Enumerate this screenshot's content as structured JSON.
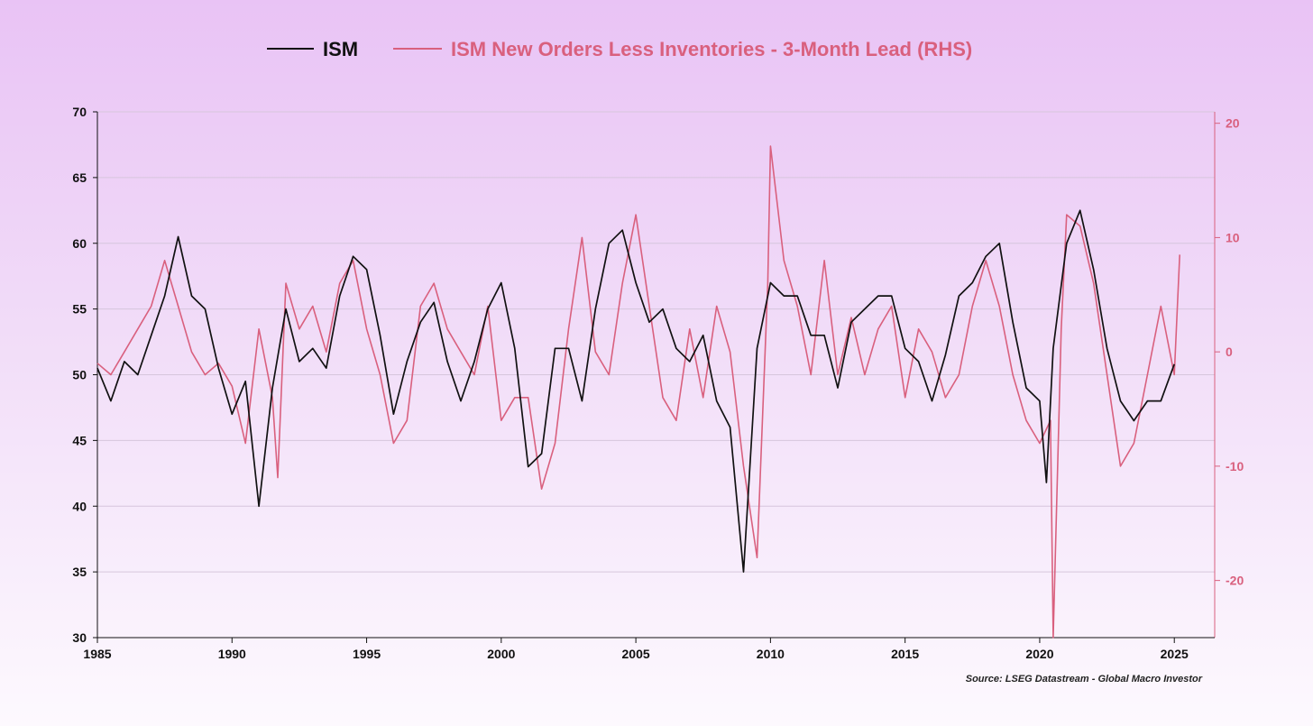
{
  "legend": {
    "ism_label": "ISM",
    "noi_label": "ISM New Orders Less Inventories - 3-Month Lead (RHS)"
  },
  "source": "Source: LSEG Datastream - Global Macro Investor",
  "colors": {
    "ism": "#111111",
    "noi": "#d9607e",
    "left_axis": "#111111",
    "right_axis": "#d9607e",
    "grid": "#d6c6dc"
  },
  "chart_data": {
    "type": "line",
    "xlim": [
      1985,
      2026.5
    ],
    "x_ticks": [
      1985,
      1990,
      1995,
      2000,
      2005,
      2010,
      2015,
      2020,
      2025
    ],
    "y_left": {
      "lim": [
        30,
        70
      ],
      "ticks": [
        30,
        35,
        40,
        45,
        50,
        55,
        60,
        65,
        70
      ]
    },
    "y_right": {
      "lim": [
        -25,
        21
      ],
      "ticks": [
        -20,
        -10,
        0,
        10,
        20
      ]
    },
    "grid": true,
    "legend_position": "top-center",
    "series": [
      {
        "name": "ISM",
        "axis": "left",
        "x": [
          1985.0,
          1985.5,
          1986.0,
          1986.5,
          1987.0,
          1987.5,
          1988.0,
          1988.5,
          1989.0,
          1989.5,
          1990.0,
          1990.5,
          1991.0,
          1991.5,
          1992.0,
          1992.5,
          1993.0,
          1993.5,
          1994.0,
          1994.5,
          1995.0,
          1995.5,
          1996.0,
          1996.5,
          1997.0,
          1997.5,
          1998.0,
          1998.5,
          1999.0,
          1999.5,
          2000.0,
          2000.5,
          2001.0,
          2001.5,
          2002.0,
          2002.5,
          2003.0,
          2003.5,
          2004.0,
          2004.5,
          2005.0,
          2005.5,
          2006.0,
          2006.5,
          2007.0,
          2007.5,
          2008.0,
          2008.5,
          2009.0,
          2009.5,
          2010.0,
          2010.5,
          2011.0,
          2011.5,
          2012.0,
          2012.5,
          2013.0,
          2013.5,
          2014.0,
          2014.5,
          2015.0,
          2015.5,
          2016.0,
          2016.5,
          2017.0,
          2017.5,
          2018.0,
          2018.5,
          2019.0,
          2019.5,
          2020.0,
          2020.25,
          2020.5,
          2021.0,
          2021.5,
          2022.0,
          2022.5,
          2023.0,
          2023.5,
          2024.0,
          2024.5,
          2025.0
        ],
        "y": [
          50.5,
          48,
          51,
          50,
          53,
          56,
          60.5,
          56,
          55,
          50.5,
          47,
          49.5,
          40,
          49,
          55,
          51,
          52,
          50.5,
          56,
          59,
          58,
          53,
          47,
          51,
          54,
          55.5,
          51,
          48,
          51,
          55,
          57,
          52,
          43,
          44,
          52,
          52,
          48,
          55,
          60,
          61,
          57,
          54,
          55,
          52,
          51,
          53,
          48,
          46,
          35,
          52,
          57,
          56,
          56,
          53,
          53,
          49,
          54,
          55,
          56,
          56,
          52,
          51,
          48,
          51.5,
          56,
          57,
          59,
          60,
          54,
          49,
          48,
          41.8,
          52,
          60,
          62.5,
          58,
          52,
          48,
          46.5,
          48,
          48,
          50.8
        ]
      },
      {
        "name": "ISM New Orders Less Inventories - 3-Month Lead (RHS)",
        "axis": "right",
        "x": [
          1985.0,
          1985.5,
          1986.0,
          1986.5,
          1987.0,
          1987.5,
          1988.0,
          1988.5,
          1989.0,
          1989.5,
          1990.0,
          1990.5,
          1991.0,
          1991.5,
          1991.7,
          1992.0,
          1992.5,
          1993.0,
          1993.5,
          1994.0,
          1994.5,
          1995.0,
          1995.5,
          1996.0,
          1996.5,
          1997.0,
          1997.5,
          1998.0,
          1998.5,
          1999.0,
          1999.5,
          2000.0,
          2000.5,
          2001.0,
          2001.5,
          2002.0,
          2002.5,
          2003.0,
          2003.5,
          2004.0,
          2004.5,
          2005.0,
          2005.5,
          2006.0,
          2006.5,
          2007.0,
          2007.5,
          2008.0,
          2008.5,
          2009.0,
          2009.5,
          2009.9,
          2010.0,
          2010.5,
          2011.0,
          2011.5,
          2012.0,
          2012.5,
          2013.0,
          2013.5,
          2014.0,
          2014.5,
          2015.0,
          2015.5,
          2016.0,
          2016.5,
          2017.0,
          2017.5,
          2018.0,
          2018.5,
          2019.0,
          2019.5,
          2020.0,
          2020.4,
          2020.5,
          2020.8,
          2021.0,
          2021.5,
          2022.0,
          2022.5,
          2023.0,
          2023.5,
          2024.0,
          2024.5,
          2025.0,
          2025.2
        ],
        "y": [
          -1,
          -2,
          0,
          2,
          4,
          8,
          4,
          0,
          -2,
          -1,
          -3,
          -8,
          2,
          -4,
          -11,
          6,
          2,
          4,
          0,
          6,
          8,
          2,
          -2,
          -8,
          -6,
          4,
          6,
          2,
          0,
          -2,
          4,
          -6,
          -4,
          -4,
          -12,
          -8,
          2,
          10,
          0,
          -2,
          6,
          12,
          4,
          -4,
          -6,
          2,
          -4,
          4,
          0,
          -10,
          -18,
          6,
          18,
          8,
          4,
          -2,
          8,
          -2,
          3,
          -2,
          2,
          4,
          -4,
          2,
          0,
          -4,
          -2,
          4,
          8,
          4,
          -2,
          -6,
          -8,
          -6,
          -25,
          2,
          12,
          11,
          6,
          -2,
          -10,
          -8,
          -2,
          4,
          -2,
          8.5
        ]
      }
    ]
  }
}
